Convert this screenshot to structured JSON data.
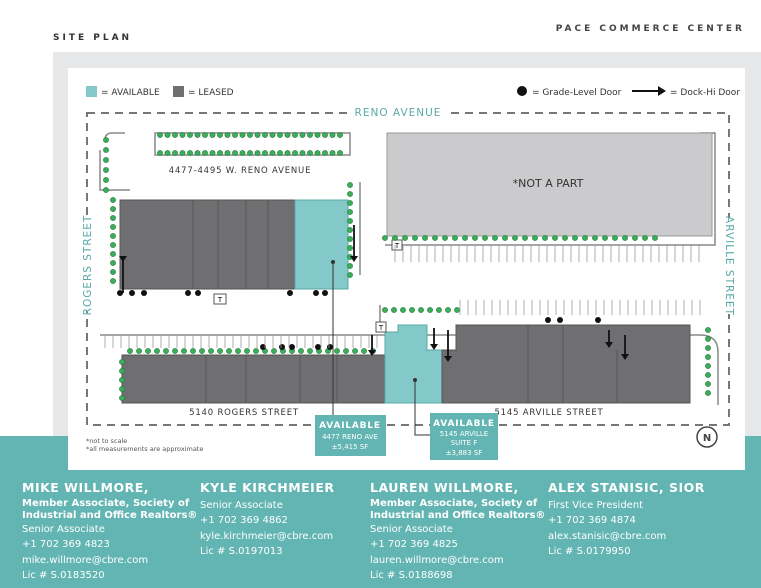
{
  "header": {
    "section": "SITE PLAN",
    "property": "PACE COMMERCE CENTER"
  },
  "legend": {
    "available": "= AVAILABLE",
    "leased": "= LEASED",
    "grade_door": "= Grade-Level Door",
    "dock_door": "= Dock-Hi Door"
  },
  "map": {
    "streets": [
      "RENO AVENUE",
      "ROGERS STREET",
      "ARVILLE STREET"
    ],
    "buildings": [
      "4477-4495 W. RENO AVENUE",
      "*NOT A PART",
      "5140 ROGERS STREET",
      "5145 ARVILLE STREET"
    ],
    "callouts": [
      {
        "title": "AVAILABLE",
        "lines": [
          "4477 RENO AVE",
          "±5,415 SF"
        ]
      },
      {
        "title": "AVAILABLE",
        "lines": [
          "5145 ARVILLE",
          "SUITE F",
          "±3,883 SF"
        ]
      }
    ],
    "markers": [
      "T",
      "T",
      "T"
    ],
    "compass": "N",
    "notes": [
      "*not to scale",
      "*all measurements are approximate"
    ]
  },
  "contacts": [
    {
      "name": "MIKE WILLMORE,",
      "lines": [
        "Member Associate, Society of",
        "Industrial and Office Realtors®",
        "Senior Associate",
        "+1 702 369 4823",
        "mike.willmore@cbre.com",
        "Lic # S.0183520"
      ]
    },
    {
      "name": "KYLE KIRCHMEIER",
      "lines": [
        "Senior Associate",
        "+1 702 369 4862",
        "kyle.kirchmeier@cbre.com",
        "Lic # S.0197013"
      ]
    },
    {
      "name": "LAUREN WILLMORE,",
      "lines": [
        "Member Associate, Society of",
        "Industrial and Office Realtors®",
        "Senior Associate",
        "+1 702 369 4825",
        "lauren.willmore@cbre.com",
        "Lic # S.0188698"
      ]
    },
    {
      "name": "ALEX STANISIC, SIOR",
      "lines": [
        "First Vice President",
        "+1 702 369 4874",
        "alex.stanisic@cbre.com",
        "Lic # S.0179950"
      ]
    }
  ]
}
